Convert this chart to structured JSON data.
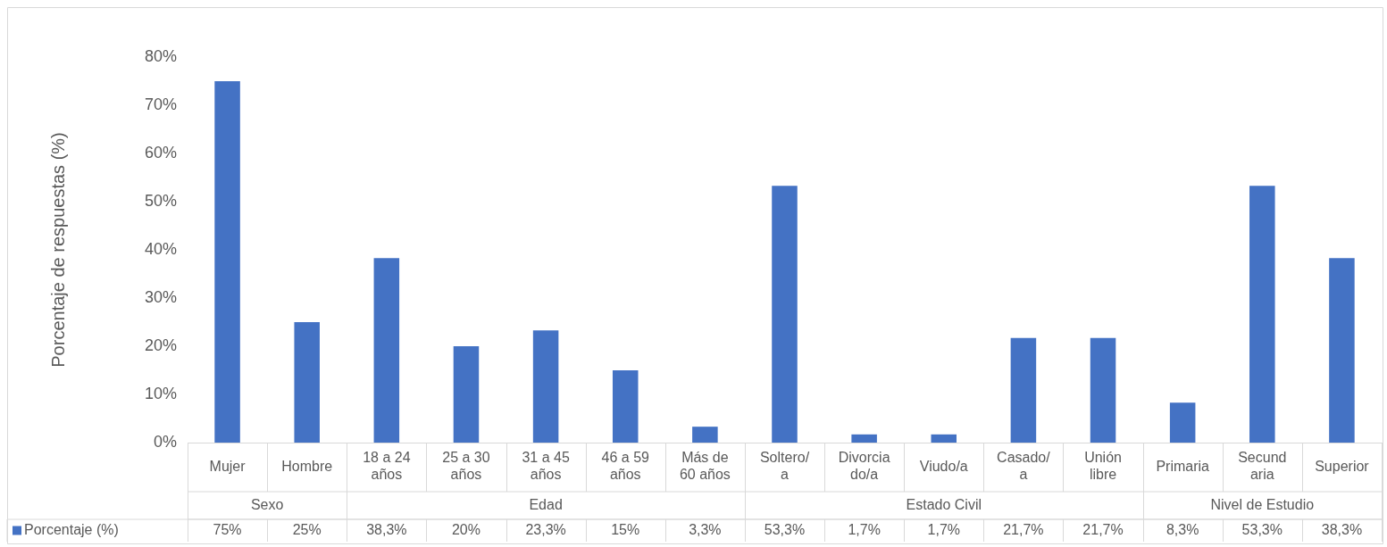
{
  "chart_data": {
    "type": "bar",
    "ylabel": "Porcentaje de respuestas (%)",
    "categories": [
      "Mujer",
      "Hombre",
      "18 a 24 años",
      "25 a 30 años",
      "31 a 45 años",
      "46 a 59 años",
      "Más de 60 años",
      "Soltero/a",
      "Divorciado/a",
      "Viudo/a",
      "Casado/a",
      "Unión libre",
      "Primaria",
      "Secundaria",
      "Superior"
    ],
    "series": [
      {
        "name": "Porcentaje (%)",
        "color": "#4472c4",
        "values": [
          75,
          25,
          38.3,
          20,
          23.3,
          15,
          3.3,
          53.3,
          1.7,
          1.7,
          21.7,
          21.7,
          8.3,
          53.3,
          38.3
        ],
        "value_labels": [
          "75%",
          "25%",
          "38,3%",
          "20%",
          "23,3%",
          "15%",
          "3,3%",
          "53,3%",
          "1,7%",
          "1,7%",
          "21,7%",
          "21,7%",
          "8,3%",
          "53,3%",
          "38,3%"
        ]
      }
    ],
    "annotations": [
      "Sexo",
      "Edad",
      "Estado Civil",
      "Nivel de Estudio"
    ],
    "ylim": [
      0,
      80
    ],
    "yticks": [
      {
        "value": 0,
        "label": "0%"
      },
      {
        "value": 10,
        "label": "10%"
      },
      {
        "value": 20,
        "label": "20%"
      },
      {
        "value": 30,
        "label": "30%"
      },
      {
        "value": 40,
        "label": "40%"
      },
      {
        "value": 50,
        "label": "50%"
      },
      {
        "value": 60,
        "label": "60%"
      },
      {
        "value": 70,
        "label": "70%"
      },
      {
        "value": 80,
        "label": "80%"
      }
    ],
    "grid": false,
    "legend": "bottom left"
  }
}
